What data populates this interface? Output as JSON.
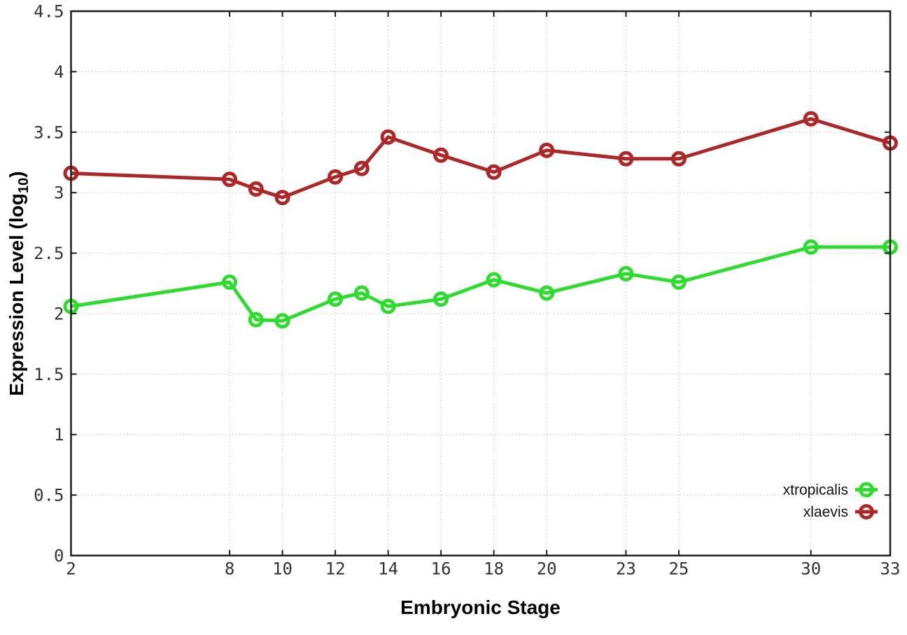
{
  "chart_data": {
    "type": "line",
    "title": "",
    "xlabel": "Embryonic Stage",
    "ylabel": "Expression Level (log10)",
    "ylabel_prefix": "Expression Level (log",
    "ylabel_sub": "10",
    "ylabel_suffix": ")",
    "x": [
      2,
      8,
      9,
      10,
      12,
      13,
      14,
      16,
      18,
      20,
      23,
      25,
      30,
      33
    ],
    "xlim": [
      2,
      33
    ],
    "ylim": [
      0,
      4.5
    ],
    "x_ticks": [
      2,
      8,
      10,
      12,
      14,
      16,
      18,
      20,
      23,
      25,
      30,
      33
    ],
    "x_tick_labels": [
      "2",
      "8",
      "10",
      "12",
      "14",
      "16",
      "18",
      "20",
      "23",
      "25",
      "30",
      "33"
    ],
    "y_ticks": [
      0,
      0.5,
      1,
      1.5,
      2,
      2.5,
      3,
      3.5,
      4,
      4.5
    ],
    "y_tick_labels": [
      "0",
      "0.5",
      "1",
      "1.5",
      "2",
      "2.5",
      "3",
      "3.5",
      "4",
      "4.5"
    ],
    "grid": true,
    "legend_position": "bottom-right",
    "marker": "open-circle",
    "series": [
      {
        "name": "xtropicalis",
        "color": "#2fdb2f",
        "values": [
          2.06,
          2.26,
          1.95,
          1.94,
          2.12,
          2.17,
          2.06,
          2.12,
          2.28,
          2.17,
          2.33,
          2.26,
          2.55,
          2.55
        ]
      },
      {
        "name": "xlaevis",
        "color": "#ac2828",
        "values": [
          3.16,
          3.11,
          3.03,
          2.96,
          3.13,
          3.2,
          3.46,
          3.31,
          3.17,
          3.35,
          3.28,
          3.28,
          3.61,
          3.41
        ]
      }
    ],
    "colors": {
      "grid": "#c6c6c6",
      "border": "#1c1c1c",
      "tick_label": "#333333",
      "axis_title": "#000000",
      "legend_text": "#111111"
    }
  }
}
